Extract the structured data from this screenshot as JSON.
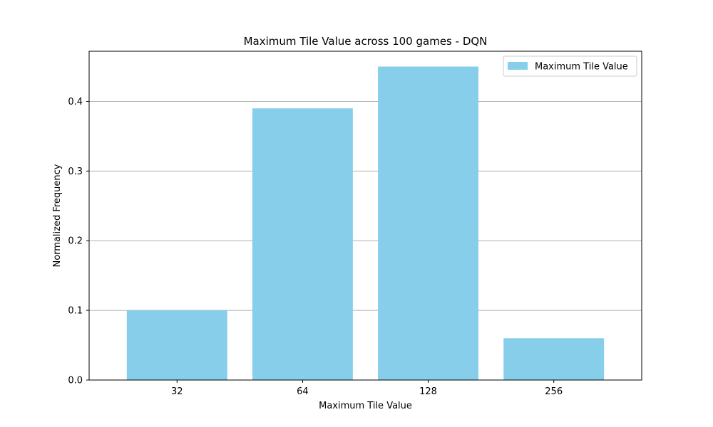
{
  "chart_data": {
    "type": "bar",
    "title": "Maximum Tile Value across 100 games - DQN",
    "xlabel": "Maximum Tile Value",
    "ylabel": "Normalized Frequency",
    "categories": [
      "32",
      "64",
      "128",
      "256"
    ],
    "series": [
      {
        "name": "Maximum Tile Value",
        "values": [
          0.1,
          0.39,
          0.45,
          0.06
        ]
      }
    ],
    "ylim": [
      0,
      0.472
    ],
    "yticks": [
      0.0,
      0.1,
      0.2,
      0.3,
      0.4
    ],
    "ytick_labels": [
      "0.0",
      "0.1",
      "0.2",
      "0.3",
      "0.4"
    ],
    "grid": "y",
    "legend_position": "top-right",
    "colors": {
      "bar": "#87ceeb",
      "grid": "#b0b0b0",
      "axes": "#000000"
    }
  }
}
